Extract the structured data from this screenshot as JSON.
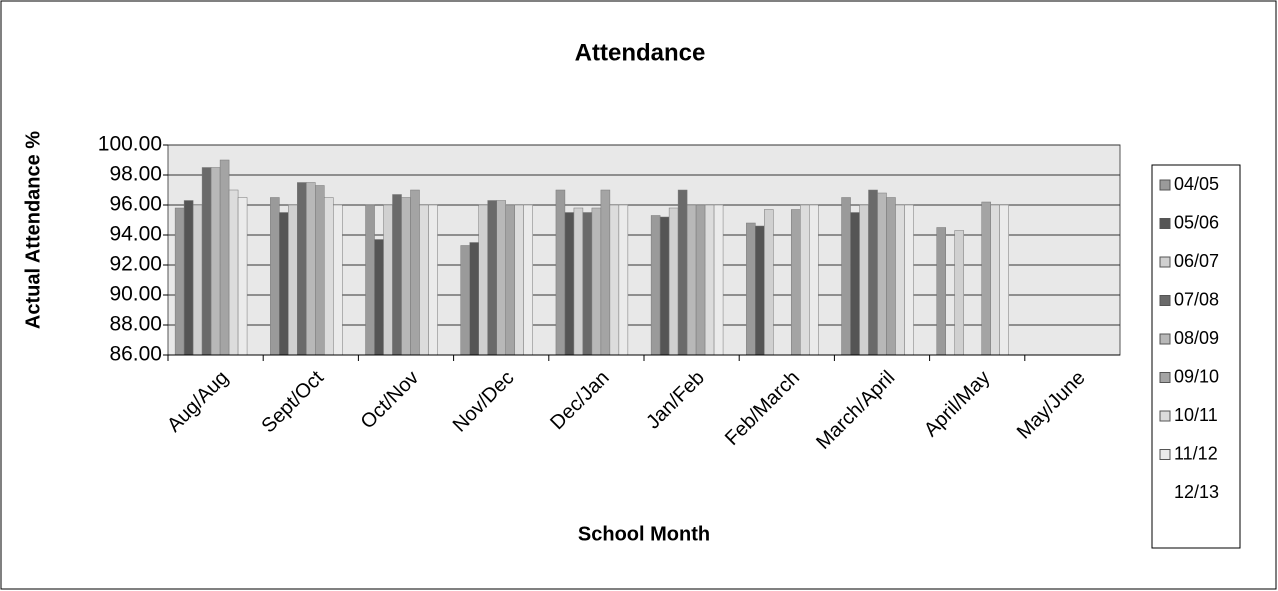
{
  "chart_data": {
    "type": "bar",
    "title": "Attendance",
    "x_label": "School Month",
    "y_label": "Actual Attendance %",
    "categories": [
      "Aug/Aug",
      "Sept/Oct",
      "Oct/Nov",
      "Nov/Dec",
      "Dec/Jan",
      "Jan/Feb",
      "Feb/March",
      "March/April",
      "April/May",
      "May/June"
    ],
    "series": [
      {
        "name": "04/05",
        "color": "#9a9a9a",
        "values": [
          95.8,
          96.5,
          96.0,
          93.3,
          97.0,
          95.3,
          94.8,
          96.5,
          94.5,
          null
        ]
      },
      {
        "name": "05/06",
        "color": "#555555",
        "values": [
          96.3,
          95.5,
          93.7,
          93.5,
          95.5,
          95.2,
          94.6,
          95.5,
          null,
          null
        ]
      },
      {
        "name": "06/07",
        "color": "#d0d0d0",
        "values": [
          96.0,
          96.0,
          96.0,
          96.0,
          95.8,
          95.8,
          95.7,
          96.0,
          94.3,
          null
        ]
      },
      {
        "name": "07/08",
        "color": "#6a6a6a",
        "values": [
          98.5,
          97.5,
          96.7,
          96.3,
          95.5,
          97.0,
          null,
          97.0,
          null,
          null
        ]
      },
      {
        "name": "08/09",
        "color": "#b8b8b8",
        "values": [
          98.5,
          97.5,
          96.5,
          96.3,
          95.8,
          96.0,
          null,
          96.8,
          null,
          null
        ]
      },
      {
        "name": "09/10",
        "color": "#a4a4a4",
        "values": [
          99.0,
          97.3,
          97.0,
          96.0,
          97.0,
          96.0,
          95.7,
          96.5,
          96.2,
          null
        ]
      },
      {
        "name": "10/11",
        "color": "#dcdcdc",
        "values": [
          97.0,
          96.5,
          96.0,
          96.0,
          96.0,
          96.0,
          96.0,
          96.0,
          96.0,
          null
        ]
      },
      {
        "name": "11/12",
        "color": "#ebebeb",
        "values": [
          96.5,
          96.0,
          96.0,
          96.0,
          96.0,
          96.0,
          96.0,
          96.0,
          96.0,
          null
        ]
      },
      {
        "name": "12/13",
        "color": "#ffffff",
        "values": [
          null,
          null,
          null,
          null,
          null,
          null,
          null,
          null,
          null,
          null
        ]
      }
    ],
    "ylim": [
      86,
      100
    ],
    "yticks": [
      {
        "value": 86,
        "label": "86.00"
      },
      {
        "value": 88,
        "label": "88.00"
      },
      {
        "value": 90,
        "label": "90.00"
      },
      {
        "value": 92,
        "label": "92.00"
      },
      {
        "value": 94,
        "label": "94.00"
      },
      {
        "value": 96,
        "label": "96.00"
      },
      {
        "value": 98,
        "label": "98.00"
      },
      {
        "value": 100,
        "label": "100.00"
      }
    ],
    "grid": true,
    "legend": "right"
  }
}
